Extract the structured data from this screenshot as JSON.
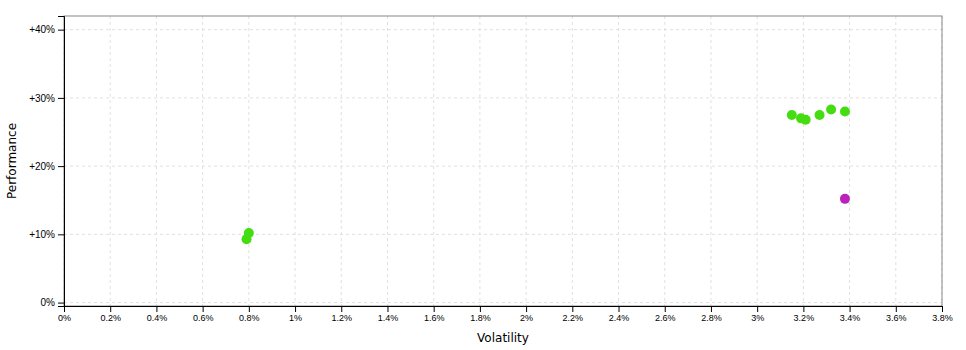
{
  "chart_data": {
    "type": "scatter",
    "xlabel": "Volatility",
    "ylabel": "Performance",
    "xlim": [
      0.0,
      0.038
    ],
    "ylim": [
      -0.005,
      0.42
    ],
    "xticks": [
      {
        "value": 0.0,
        "label": "0%"
      },
      {
        "value": 0.002,
        "label": "0.2%"
      },
      {
        "value": 0.004,
        "label": "0.4%"
      },
      {
        "value": 0.006,
        "label": "0.6%"
      },
      {
        "value": 0.008,
        "label": "0.8%"
      },
      {
        "value": 0.01,
        "label": "1%"
      },
      {
        "value": 0.012,
        "label": "1.2%"
      },
      {
        "value": 0.014,
        "label": "1.4%"
      },
      {
        "value": 0.016,
        "label": "1.6%"
      },
      {
        "value": 0.018,
        "label": "1.8%"
      },
      {
        "value": 0.02,
        "label": "2%"
      },
      {
        "value": 0.022,
        "label": "2.2%"
      },
      {
        "value": 0.024,
        "label": "2.4%"
      },
      {
        "value": 0.026,
        "label": "2.6%"
      },
      {
        "value": 0.028,
        "label": "2.8%"
      },
      {
        "value": 0.03,
        "label": "3%"
      },
      {
        "value": 0.032,
        "label": "3.2%"
      },
      {
        "value": 0.034,
        "label": "3.4%"
      },
      {
        "value": 0.036,
        "label": "3.6%"
      },
      {
        "value": 0.038,
        "label": "3.8%"
      }
    ],
    "yticks": [
      {
        "value": 0.0,
        "label": "0%"
      },
      {
        "value": 0.1,
        "label": "+10%"
      },
      {
        "value": 0.2,
        "label": "+20%"
      },
      {
        "value": 0.3,
        "label": "+30%"
      },
      {
        "value": 0.4,
        "label": "+40%"
      }
    ],
    "grid": true,
    "series": [
      {
        "color": "#44dd11",
        "x": [
          0.008,
          0.0079,
          0.0319,
          0.0315,
          0.0321,
          0.0327,
          0.0332,
          0.0338
        ],
        "values": [
          0.102,
          0.093,
          0.27,
          0.275,
          0.268,
          0.275,
          0.283,
          0.28
        ]
      },
      {
        "color": "#bb22bb",
        "x": [
          0.0338
        ],
        "values": [
          0.152
        ]
      }
    ]
  }
}
